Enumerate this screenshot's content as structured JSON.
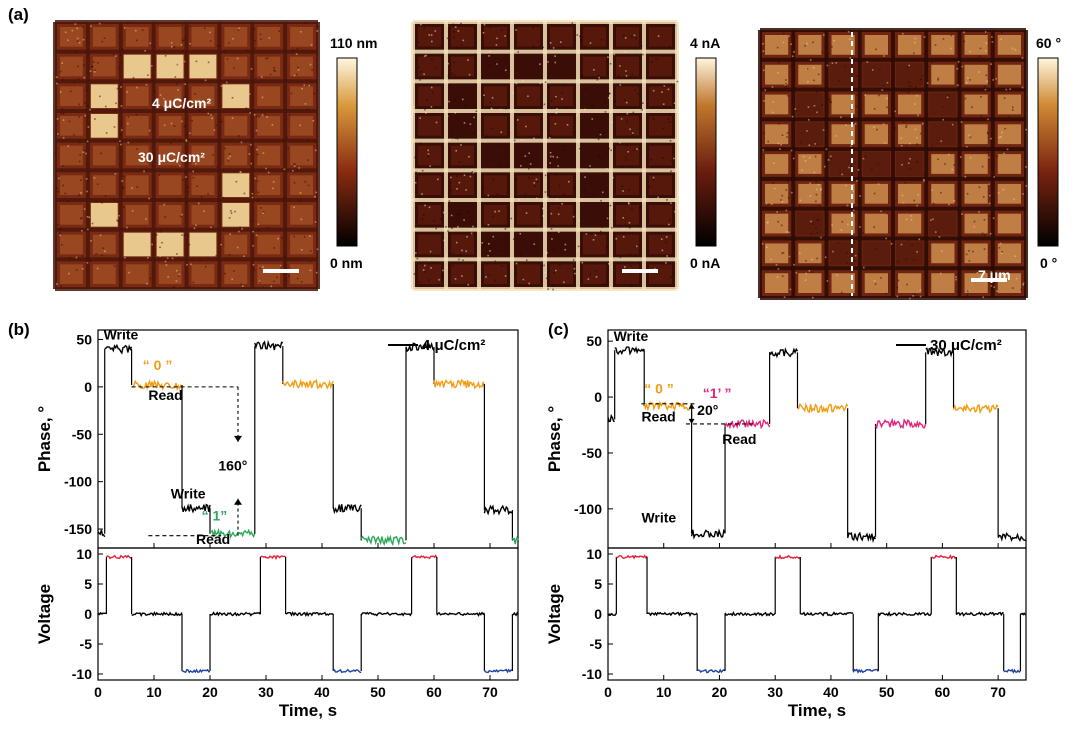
{
  "panel_a": {
    "label": "(a)",
    "images": [
      {
        "kind": "topography",
        "annotations": [
          "4 μC/cm²",
          "30 μC/cm²"
        ],
        "colorbar": {
          "top": "110 nm",
          "bottom": "0 nm",
          "colors": [
            "#000000",
            "#8a2c10",
            "#d89a3c",
            "#fff7e0"
          ]
        },
        "grid_rows": 9,
        "grid_cols": 8,
        "highlight_cells": [
          [
            1,
            2
          ],
          [
            1,
            3
          ],
          [
            1,
            4
          ],
          [
            2,
            1
          ],
          [
            2,
            5
          ],
          [
            3,
            1
          ],
          [
            5,
            5
          ],
          [
            6,
            1
          ],
          [
            6,
            5
          ],
          [
            7,
            2
          ],
          [
            7,
            3
          ],
          [
            7,
            4
          ]
        ]
      },
      {
        "kind": "current",
        "annotations": [],
        "colorbar": {
          "top": "4 nA",
          "bottom": "0 nA",
          "colors": [
            "#000000",
            "#6b1e0e",
            "#c0782e",
            "#fff4dc"
          ]
        },
        "grid_rows": 9,
        "grid_cols": 8,
        "dark_cells": [
          [
            1,
            2
          ],
          [
            1,
            3
          ],
          [
            1,
            4
          ],
          [
            2,
            1
          ],
          [
            2,
            5
          ],
          [
            3,
            1
          ],
          [
            3,
            5
          ],
          [
            4,
            2
          ],
          [
            4,
            3
          ],
          [
            4,
            4
          ],
          [
            4,
            5
          ],
          [
            5,
            5
          ],
          [
            6,
            1
          ],
          [
            6,
            5
          ],
          [
            7,
            2
          ],
          [
            7,
            3
          ],
          [
            7,
            4
          ]
        ]
      },
      {
        "kind": "phase",
        "annotations": [
          "7 μm"
        ],
        "colorbar": {
          "top": "60 °",
          "bottom": "0 °",
          "colors": [
            "#000000",
            "#7b2410",
            "#d08a34",
            "#fff6de"
          ]
        },
        "grid_rows": 9,
        "grid_cols": 8,
        "dark_cells": [
          [
            1,
            2
          ],
          [
            1,
            3
          ],
          [
            1,
            4
          ],
          [
            2,
            1
          ],
          [
            2,
            5
          ],
          [
            3,
            1
          ],
          [
            3,
            5
          ],
          [
            4,
            2
          ],
          [
            4,
            3
          ],
          [
            4,
            4
          ],
          [
            6,
            1
          ],
          [
            6,
            5
          ],
          [
            7,
            2
          ],
          [
            7,
            3
          ],
          [
            7,
            4
          ]
        ]
      }
    ]
  },
  "chart_data": [
    {
      "type": "line",
      "panel": "(b)",
      "legend": "4 μC/cm²",
      "xlabel": "Time, s",
      "ylabel_top": "Phase, °",
      "ylabel_bottom": "Voltage",
      "xlim": [
        0,
        75
      ],
      "ylim_top": [
        -170,
        60
      ],
      "ylim_bottom": [
        -11,
        11
      ],
      "xticks": [
        0,
        10,
        20,
        30,
        40,
        50,
        60,
        70
      ],
      "yticks_top": [
        50,
        0,
        -50,
        -100,
        -150
      ],
      "yticks_bottom": [
        10,
        5,
        0,
        -5,
        -10
      ],
      "phase_segments": [
        {
          "t0": 0,
          "t1": 1.2,
          "v": -155,
          "color": "#000000"
        },
        {
          "t0": 1.2,
          "t1": 6,
          "v": 40,
          "color": "#000000"
        },
        {
          "t0": 6,
          "t1": 15,
          "v": 2,
          "color": "#f39c12"
        },
        {
          "t0": 15,
          "t1": 20,
          "v": -128,
          "color": "#000000"
        },
        {
          "t0": 20,
          "t1": 28,
          "v": -155,
          "color": "#2ca85a"
        },
        {
          "t0": 28,
          "t1": 33,
          "v": 43,
          "color": "#000000"
        },
        {
          "t0": 33,
          "t1": 42,
          "v": 3,
          "color": "#f39c12"
        },
        {
          "t0": 42,
          "t1": 47,
          "v": -128,
          "color": "#000000"
        },
        {
          "t0": 47,
          "t1": 55,
          "v": -162,
          "color": "#2ca85a"
        },
        {
          "t0": 55,
          "t1": 60,
          "v": 42,
          "color": "#000000"
        },
        {
          "t0": 60,
          "t1": 69,
          "v": 3,
          "color": "#f39c12"
        },
        {
          "t0": 69,
          "t1": 74,
          "v": -130,
          "color": "#000000"
        },
        {
          "t0": 74,
          "t1": 75,
          "v": -162,
          "color": "#2ca85a"
        }
      ],
      "voltage_segments": [
        {
          "t0": 0,
          "t1": 1.5,
          "v": 0,
          "color": "#000000"
        },
        {
          "t0": 1.5,
          "t1": 6,
          "v": 9.5,
          "color": "#e8223a"
        },
        {
          "t0": 6,
          "t1": 15,
          "v": 0,
          "color": "#000000"
        },
        {
          "t0": 15,
          "t1": 20,
          "v": -9.5,
          "color": "#2040a0"
        },
        {
          "t0": 20,
          "t1": 29,
          "v": 0,
          "color": "#000000"
        },
        {
          "t0": 29,
          "t1": 33.5,
          "v": 9.5,
          "color": "#e8223a"
        },
        {
          "t0": 33.5,
          "t1": 42,
          "v": 0,
          "color": "#000000"
        },
        {
          "t0": 42,
          "t1": 47,
          "v": -9.5,
          "color": "#2040a0"
        },
        {
          "t0": 47,
          "t1": 56,
          "v": 0,
          "color": "#000000"
        },
        {
          "t0": 56,
          "t1": 60.5,
          "v": 9.5,
          "color": "#e8223a"
        },
        {
          "t0": 60.5,
          "t1": 69,
          "v": 0,
          "color": "#000000"
        },
        {
          "t0": 69,
          "t1": 74,
          "v": -9.5,
          "color": "#2040a0"
        },
        {
          "t0": 74,
          "t1": 75,
          "v": 0,
          "color": "#000000"
        }
      ],
      "annotations": [
        {
          "text": "Write",
          "t": 1,
          "v": 50,
          "color": "#000000"
        },
        {
          "text": "“ 0 ”",
          "t": 8,
          "v": 18,
          "color": "#f39c12"
        },
        {
          "text": "Read",
          "t": 9,
          "v": -14,
          "color": "#000000"
        },
        {
          "text": "160°",
          "t": 21.5,
          "v": -88,
          "color": "#000000"
        },
        {
          "text": "Write",
          "t": 13,
          "v": -118,
          "color": "#000000"
        },
        {
          "text": "“ 1”",
          "t": 18.5,
          "v": -141,
          "color": "#2ca85a"
        },
        {
          "text": "Read",
          "t": 17.5,
          "v": -166,
          "color": "#000000"
        }
      ],
      "ref_lines": [
        {
          "v": 0,
          "t0": 6,
          "t1": 25
        },
        {
          "v": -157,
          "t0": 9,
          "t1": 22
        }
      ],
      "arrow": {
        "t": 25,
        "v_from": 0,
        "v_to": -157
      }
    },
    {
      "type": "line",
      "panel": "(c)",
      "legend": "30 μC/cm²",
      "xlabel": "Time, s",
      "ylabel_top": "Phase, °",
      "ylabel_bottom": "Voltage",
      "xlim": [
        0,
        75
      ],
      "ylim_top": [
        -135,
        60
      ],
      "ylim_bottom": [
        -11,
        11
      ],
      "xticks": [
        0,
        10,
        20,
        30,
        40,
        50,
        60,
        70
      ],
      "yticks_top": [
        50,
        0,
        -50,
        -100
      ],
      "yticks_bottom": [
        10,
        5,
        0,
        -5,
        -10
      ],
      "phase_segments": [
        {
          "t0": 0,
          "t1": 1.2,
          "v": -20,
          "color": "#000000"
        },
        {
          "t0": 1.2,
          "t1": 6.5,
          "v": 42,
          "color": "#000000"
        },
        {
          "t0": 6.5,
          "t1": 15,
          "v": -8,
          "color": "#f39c12"
        },
        {
          "t0": 15,
          "t1": 21,
          "v": -122,
          "color": "#000000"
        },
        {
          "t0": 21,
          "t1": 29,
          "v": -24,
          "color": "#e6237a"
        },
        {
          "t0": 29,
          "t1": 34,
          "v": 40,
          "color": "#000000"
        },
        {
          "t0": 34,
          "t1": 43,
          "v": -10,
          "color": "#f39c12"
        },
        {
          "t0": 43,
          "t1": 48,
          "v": -125,
          "color": "#000000"
        },
        {
          "t0": 48,
          "t1": 57,
          "v": -24,
          "color": "#e6237a"
        },
        {
          "t0": 57,
          "t1": 62,
          "v": 40,
          "color": "#000000"
        },
        {
          "t0": 62,
          "t1": 70,
          "v": -10,
          "color": "#f39c12"
        },
        {
          "t0": 70,
          "t1": 75,
          "v": -125,
          "color": "#000000"
        }
      ],
      "voltage_segments": [
        {
          "t0": 0,
          "t1": 1.5,
          "v": 0,
          "color": "#000000"
        },
        {
          "t0": 1.5,
          "t1": 7,
          "v": 9.5,
          "color": "#e8223a"
        },
        {
          "t0": 7,
          "t1": 16,
          "v": 0,
          "color": "#000000"
        },
        {
          "t0": 16,
          "t1": 21,
          "v": -9.5,
          "color": "#2040a0"
        },
        {
          "t0": 21,
          "t1": 30,
          "v": 0,
          "color": "#000000"
        },
        {
          "t0": 30,
          "t1": 34.5,
          "v": 9.5,
          "color": "#e8223a"
        },
        {
          "t0": 34.5,
          "t1": 44,
          "v": 0,
          "color": "#000000"
        },
        {
          "t0": 44,
          "t1": 48.5,
          "v": -9.5,
          "color": "#2040a0"
        },
        {
          "t0": 48.5,
          "t1": 58,
          "v": 0,
          "color": "#000000"
        },
        {
          "t0": 58,
          "t1": 62.5,
          "v": 9.5,
          "color": "#e8223a"
        },
        {
          "t0": 62.5,
          "t1": 71,
          "v": 0,
          "color": "#000000"
        },
        {
          "t0": 71,
          "t1": 74,
          "v": -9.5,
          "color": "#2040a0"
        },
        {
          "t0": 74,
          "t1": 75,
          "v": 0,
          "color": "#000000"
        }
      ],
      "annotations": [
        {
          "text": "Write",
          "t": 1,
          "v": 50,
          "color": "#000000"
        },
        {
          "text": "“ 0 ”",
          "t": 6.5,
          "v": 3,
          "color": "#f39c12"
        },
        {
          "text": "“1’ ”",
          "t": 17,
          "v": -1,
          "color": "#e6237a"
        },
        {
          "text": "Read",
          "t": 6,
          "v": -22,
          "color": "#000000"
        },
        {
          "text": "20°",
          "t": 16,
          "v": -16,
          "color": "#000000"
        },
        {
          "text": "Read",
          "t": 20.5,
          "v": -42,
          "color": "#000000"
        },
        {
          "text": "Write",
          "t": 6,
          "v": -112,
          "color": "#000000"
        }
      ],
      "ref_lines": [
        {
          "v": -6,
          "t0": 6,
          "t1": 16
        },
        {
          "v": -24,
          "t0": 14,
          "t1": 26
        }
      ],
      "arrow": {
        "t": 15,
        "v_from": -6,
        "v_to": -24
      }
    }
  ]
}
